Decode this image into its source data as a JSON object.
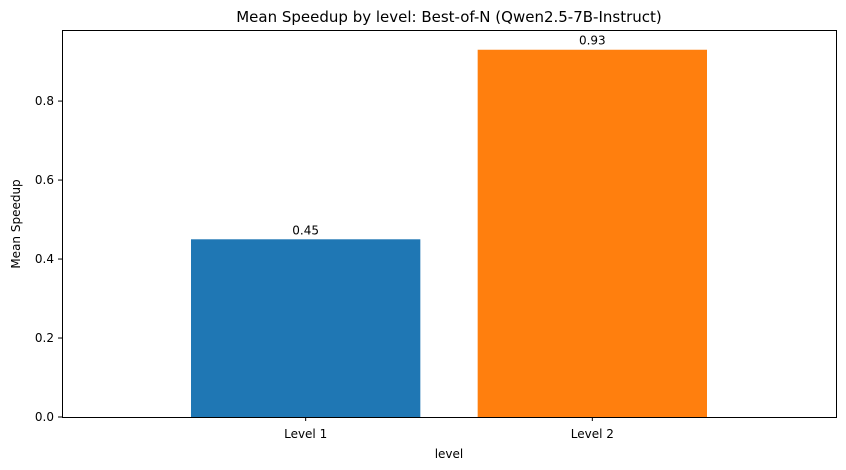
{
  "chart_data": {
    "type": "bar",
    "title": "Mean Speedup by level: Best-of-N (Qwen2.5-7B-Instruct)",
    "xlabel": "level",
    "ylabel": "Mean Speedup",
    "categories": [
      "Level 1",
      "Level 2"
    ],
    "values": [
      0.45,
      0.93
    ],
    "value_labels": [
      "0.45",
      "0.93"
    ],
    "colors": [
      "#1f77b4",
      "#ff7f0e"
    ],
    "ylim": [
      0,
      0.98
    ],
    "yticks": [
      0.0,
      0.2,
      0.4,
      0.6,
      0.8
    ],
    "ytick_labels": [
      "0.0",
      "0.2",
      "0.4",
      "0.6",
      "0.8"
    ],
    "grid": false,
    "legend": false
  }
}
